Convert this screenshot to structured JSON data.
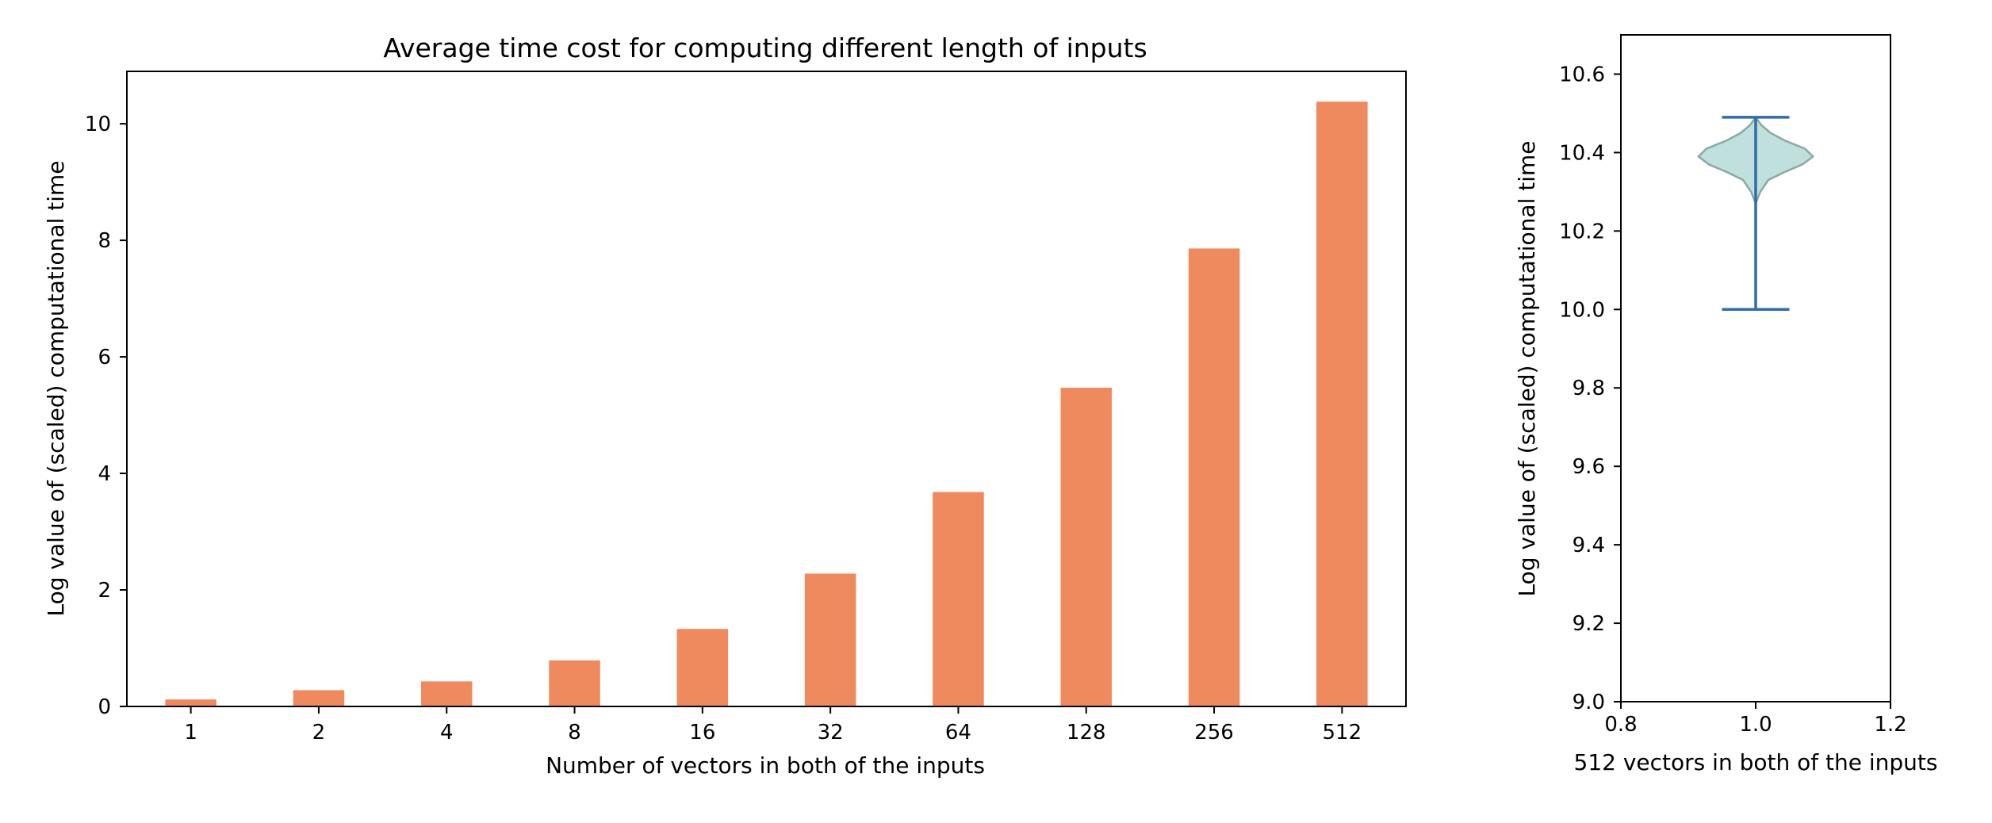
{
  "colors": {
    "bar": "#ef8a5f",
    "violin_fill": "#bfe0dc",
    "violin_edge": "#8aa8a6",
    "violin_lines": "#2f6ea6"
  },
  "chart_data": [
    {
      "type": "bar",
      "title": "Average time cost for computing different length of inputs",
      "xlabel": "Number of vectors in both of the inputs",
      "ylabel": "Log value of (scaled) computational time",
      "categories": [
        "1",
        "2",
        "4",
        "8",
        "16",
        "32",
        "64",
        "128",
        "256",
        "512"
      ],
      "values": [
        0.12,
        0.28,
        0.43,
        0.79,
        1.33,
        2.28,
        3.68,
        5.47,
        7.86,
        10.38
      ],
      "ylim": [
        0,
        10.9
      ],
      "yticks": [
        0,
        2,
        4,
        6,
        8,
        10
      ],
      "ytick_labels": [
        "0",
        "2",
        "4",
        "6",
        "8",
        "10"
      ],
      "grid": false,
      "legend": "none"
    },
    {
      "type": "violin",
      "title": "",
      "xlabel": "512 vectors in both of the inputs",
      "ylabel": "Log value of (scaled) computational time",
      "position": 1.0,
      "min": 10.0,
      "max": 10.49,
      "density": [
        [
          10.27,
          0.0
        ],
        [
          10.3,
          0.08
        ],
        [
          10.33,
          0.22
        ],
        [
          10.35,
          0.5
        ],
        [
          10.37,
          0.82
        ],
        [
          10.39,
          1.0
        ],
        [
          10.41,
          0.86
        ],
        [
          10.43,
          0.52
        ],
        [
          10.45,
          0.26
        ],
        [
          10.47,
          0.1
        ],
        [
          10.49,
          0.0
        ]
      ],
      "xlim": [
        0.8,
        1.2
      ],
      "ylim": [
        9.0,
        10.7
      ],
      "xticks": [
        0.8,
        1.0,
        1.2
      ],
      "xtick_labels": [
        "0.8",
        "1.0",
        "1.2"
      ],
      "yticks": [
        9.0,
        9.2,
        9.4,
        9.6,
        9.8,
        10.0,
        10.2,
        10.4,
        10.6
      ],
      "ytick_labels": [
        "9.0",
        "9.2",
        "9.4",
        "9.6",
        "9.8",
        "10.0",
        "10.2",
        "10.4",
        "10.6"
      ],
      "grid": false,
      "legend": "none"
    }
  ]
}
